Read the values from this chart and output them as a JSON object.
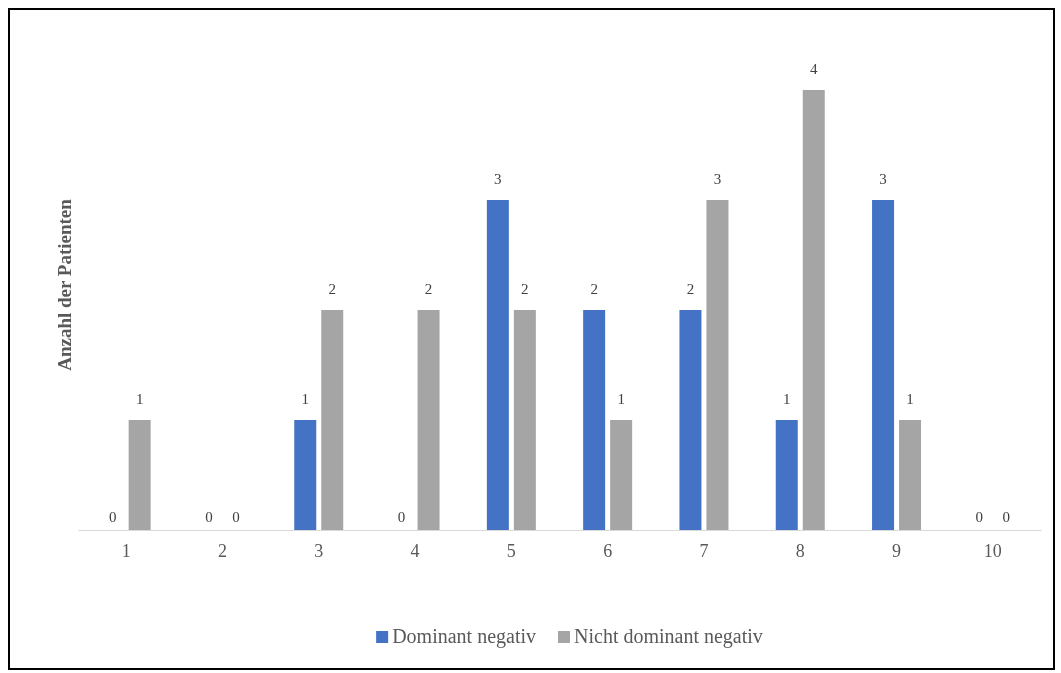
{
  "chart_data": {
    "type": "bar",
    "ylabel": "Anzahl der Patienten",
    "categories": [
      "1",
      "2",
      "3",
      "4",
      "5",
      "6",
      "7",
      "8",
      "9",
      "10"
    ],
    "series": [
      {
        "name": "Dominant negativ",
        "color": "#4472c4",
        "values": [
          0,
          0,
          1,
          0,
          3,
          2,
          2,
          1,
          3,
          0
        ]
      },
      {
        "name": "Nicht dominant negativ",
        "color": "#a5a5a5",
        "values": [
          1,
          0,
          2,
          2,
          2,
          1,
          3,
          4,
          1,
          0
        ]
      }
    ],
    "data_labels": true,
    "legend": "bottom"
  }
}
